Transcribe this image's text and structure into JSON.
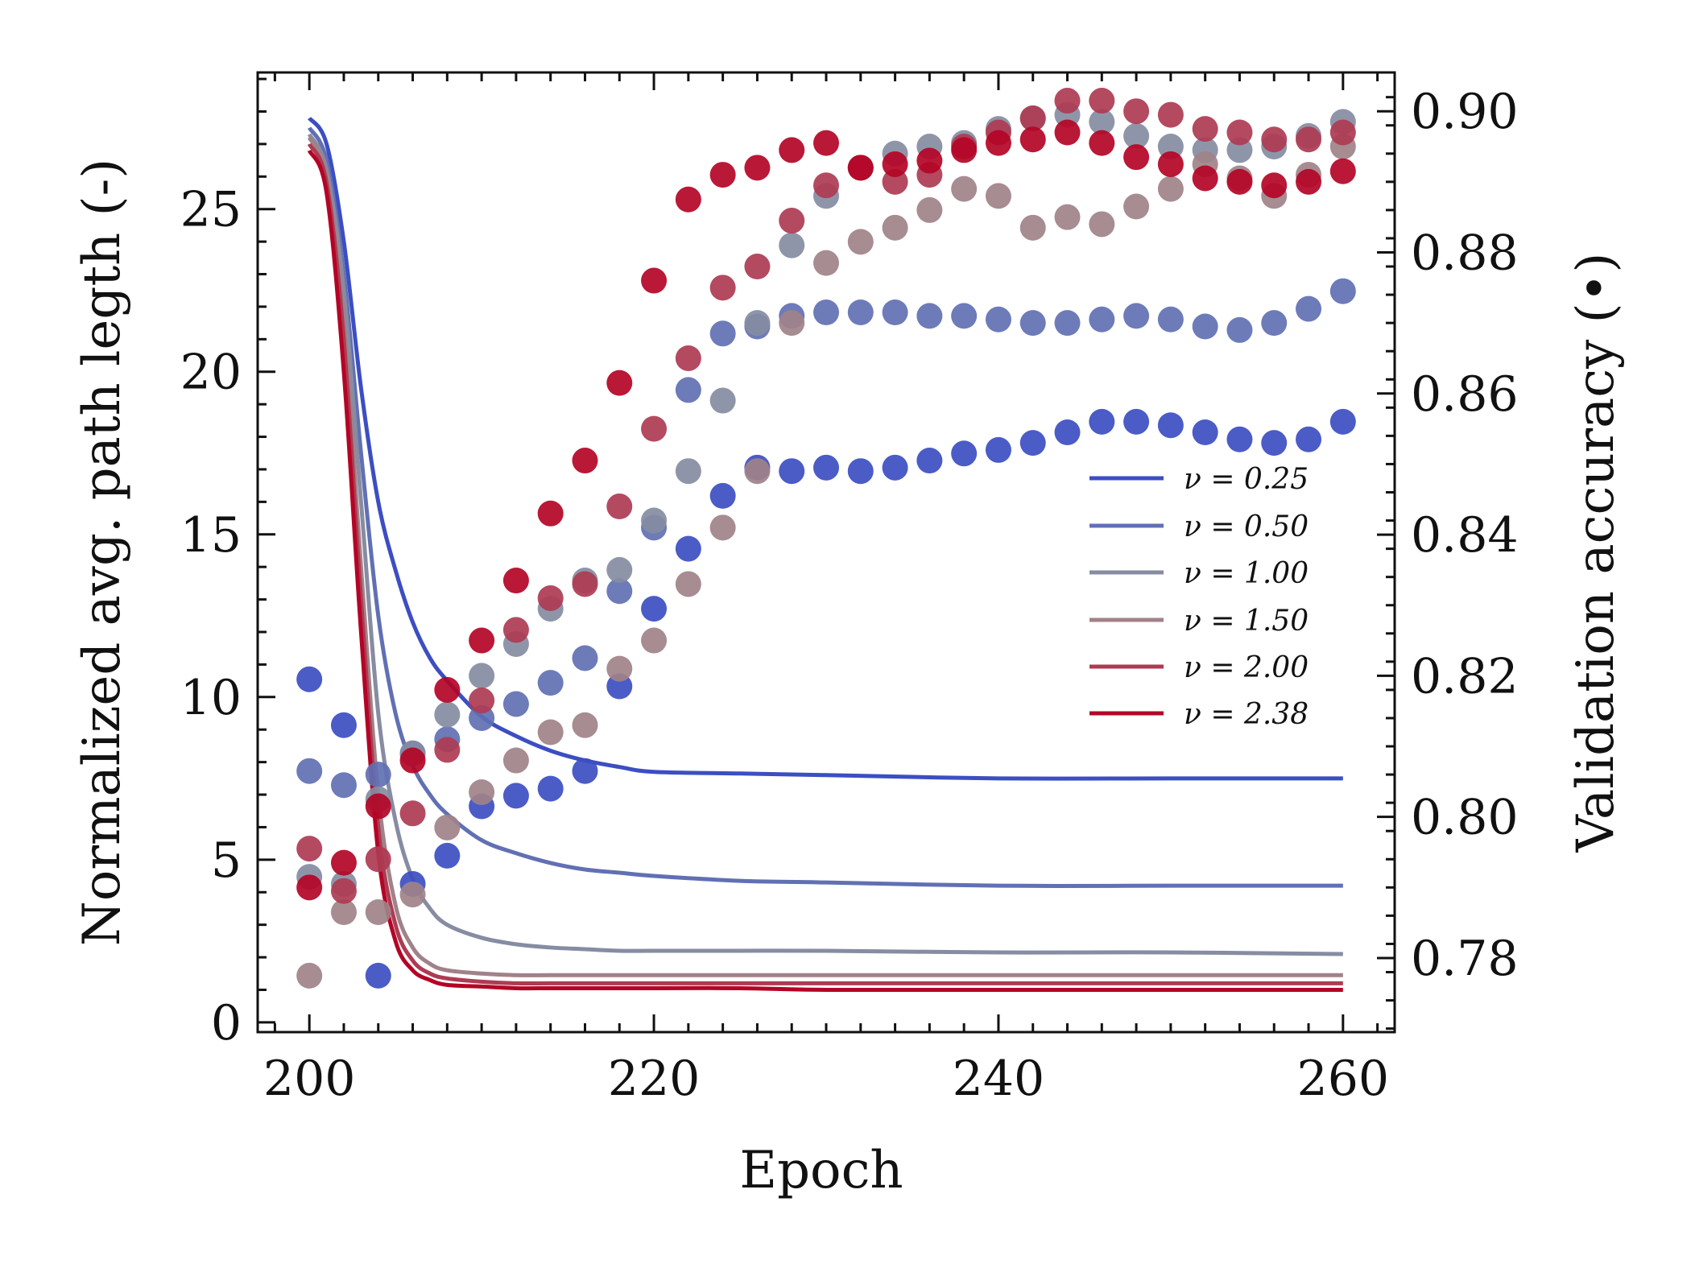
{
  "chart_data": {
    "type": "line+scatter",
    "xlabel": "Epoch",
    "ylabel_left": "Normalized avg. path legth (-)",
    "ylabel_right": "Validation accuracy (•)",
    "xlim": [
      197,
      263
    ],
    "ylim_left": [
      -0.3,
      29.2
    ],
    "ylim_right": [
      0.7695,
      0.9055
    ],
    "xticks": [
      200,
      220,
      240,
      260
    ],
    "yticks_left": [
      0,
      5,
      10,
      15,
      20,
      25
    ],
    "yticks_right": [
      0.78,
      0.8,
      0.82,
      0.84,
      0.86,
      0.88,
      0.9
    ],
    "legend": {
      "placement": "center-right",
      "entries": [
        "ν = 0.25",
        "ν = 0.50",
        "ν = 1.00",
        "ν = 1.50",
        "ν = 2.00",
        "ν = 2.38"
      ]
    },
    "line_x": [
      200,
      201,
      202,
      203,
      204,
      205,
      206,
      207,
      208,
      210,
      212,
      214,
      216,
      218,
      220,
      225,
      230,
      240,
      250,
      260
    ],
    "scatter_x": [
      200,
      202,
      204,
      206,
      208,
      210,
      212,
      214,
      216,
      218,
      220,
      222,
      224,
      226,
      228,
      230,
      232,
      234,
      236,
      238,
      240,
      242,
      244,
      246,
      248,
      250,
      252,
      254,
      256,
      258,
      260
    ],
    "series": [
      {
        "name": "ν = 0.25",
        "color": "#3c4ec2",
        "path_length": [
          27.8,
          27.0,
          24.0,
          19.5,
          16.0,
          13.9,
          12.3,
          11.2,
          10.5,
          9.4,
          8.8,
          8.35,
          8.05,
          7.85,
          7.7,
          7.65,
          7.6,
          7.5,
          7.5,
          7.5
        ],
        "accuracy": [
          0.8195,
          0.813,
          0.7775,
          0.7905,
          0.7945,
          0.8015,
          0.803,
          0.804,
          0.8065,
          0.8185,
          0.8295,
          0.838,
          0.8455,
          0.8495,
          0.849,
          0.8495,
          0.849,
          0.8495,
          0.8505,
          0.8515,
          0.852,
          0.853,
          0.8545,
          0.856,
          0.856,
          0.8555,
          0.8545,
          0.8535,
          0.853,
          0.8535,
          0.856
        ]
      },
      {
        "name": "ν = 0.50",
        "color": "#6170b3",
        "path_length": [
          27.5,
          26.5,
          23.0,
          17.5,
          12.5,
          9.5,
          7.9,
          7.0,
          6.4,
          5.6,
          5.2,
          4.9,
          4.7,
          4.6,
          4.5,
          4.35,
          4.3,
          4.2,
          4.2,
          4.2
        ],
        "accuracy": [
          0.8065,
          0.8045,
          0.806,
          0.809,
          0.811,
          0.814,
          0.816,
          0.819,
          0.8225,
          0.832,
          0.841,
          0.8605,
          0.8685,
          0.8695,
          0.871,
          0.8715,
          0.8715,
          0.8715,
          0.871,
          0.871,
          0.8705,
          0.87,
          0.87,
          0.8705,
          0.871,
          0.8705,
          0.8695,
          0.869,
          0.87,
          0.872,
          0.8745
        ]
      },
      {
        "name": "ν = 1.00",
        "color": "#868ca2",
        "path_length": [
          27.3,
          26.2,
          22.5,
          16.0,
          9.5,
          6.2,
          4.4,
          3.5,
          3.0,
          2.6,
          2.4,
          2.3,
          2.25,
          2.2,
          2.2,
          2.2,
          2.2,
          2.15,
          2.15,
          2.1
        ],
        "accuracy": [
          0.7915,
          0.7905,
          0.8025,
          0.809,
          0.8145,
          0.82,
          0.8245,
          0.8295,
          0.8335,
          0.835,
          0.842,
          0.849,
          0.859,
          0.87,
          0.881,
          0.888,
          0.892,
          0.894,
          0.895,
          0.8955,
          0.8975,
          0.899,
          0.8995,
          0.8985,
          0.8965,
          0.895,
          0.8945,
          0.8945,
          0.895,
          0.8965,
          0.8985
        ]
      },
      {
        "name": "ν = 1.50",
        "color": "#a08289",
        "path_length": [
          27.2,
          26.0,
          21.5,
          14.0,
          7.0,
          3.6,
          2.3,
          1.8,
          1.6,
          1.5,
          1.45,
          1.45,
          1.45,
          1.45,
          1.45,
          1.45,
          1.45,
          1.45,
          1.45,
          1.45
        ],
        "accuracy": [
          0.7775,
          0.7865,
          0.7865,
          0.789,
          0.7985,
          0.8035,
          0.808,
          0.812,
          0.813,
          0.821,
          0.825,
          0.833,
          0.841,
          0.849,
          0.87,
          0.8785,
          0.8815,
          0.8835,
          0.886,
          0.889,
          0.888,
          0.8835,
          0.885,
          0.884,
          0.8865,
          0.889,
          0.8925,
          0.8905,
          0.888,
          0.891,
          0.895
        ]
      },
      {
        "name": "ν = 2.00",
        "color": "#ae3b53",
        "path_length": [
          27.0,
          25.8,
          21.0,
          13.0,
          6.0,
          3.0,
          1.9,
          1.5,
          1.35,
          1.25,
          1.2,
          1.2,
          1.2,
          1.2,
          1.2,
          1.2,
          1.2,
          1.2,
          1.2,
          1.2
        ],
        "accuracy": [
          0.7955,
          0.7895,
          0.794,
          0.8005,
          0.8095,
          0.8165,
          0.8265,
          0.831,
          0.833,
          0.844,
          0.855,
          0.865,
          0.875,
          0.878,
          0.8845,
          0.8895,
          0.892,
          0.89,
          0.891,
          0.895,
          0.897,
          0.899,
          0.9015,
          0.9015,
          0.9,
          0.8995,
          0.8975,
          0.897,
          0.896,
          0.896,
          0.897
        ]
      },
      {
        "name": "ν = 2.38",
        "color": "#b40426",
        "path_length": [
          26.8,
          25.5,
          20.0,
          12.0,
          5.2,
          2.5,
          1.6,
          1.3,
          1.15,
          1.1,
          1.05,
          1.05,
          1.05,
          1.05,
          1.05,
          1.05,
          1.0,
          1.0,
          1.0,
          1.0
        ],
        "accuracy": [
          0.79,
          0.7935,
          0.8015,
          0.808,
          0.818,
          0.825,
          0.8335,
          0.843,
          0.8505,
          0.8615,
          0.876,
          0.8875,
          0.891,
          0.892,
          0.8945,
          0.8955,
          0.892,
          0.8925,
          0.893,
          0.8945,
          0.8955,
          0.896,
          0.897,
          0.8955,
          0.8935,
          0.8925,
          0.8905,
          0.89,
          0.8895,
          0.89,
          0.8915
        ]
      }
    ]
  }
}
